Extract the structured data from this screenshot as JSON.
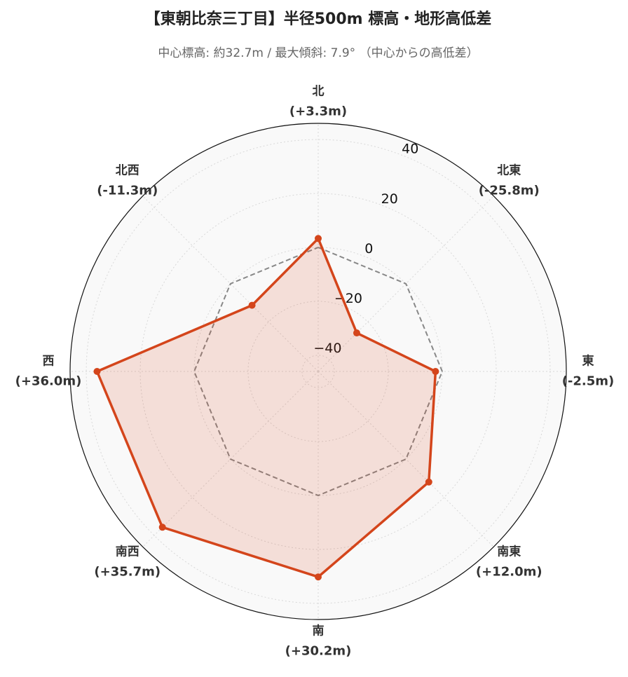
{
  "chart_data": {
    "type": "radar",
    "title": "【東朝比奈三丁目】半径500m 標高・地形高低差",
    "subtitle": "中心標高: 約32.7m / 最大傾斜: 7.9° （中心からの高低差）",
    "categories": [
      "北",
      "北東",
      "東",
      "南東",
      "南",
      "南西",
      "西",
      "北西"
    ],
    "values": [
      3.3,
      -25.8,
      -2.5,
      12.0,
      30.2,
      35.7,
      36.0,
      -11.3
    ],
    "value_labels": [
      "(+3.3m)",
      "(-25.8m)",
      "(-2.5m)",
      "(+12.0m)",
      "(+30.2m)",
      "(+35.7m)",
      "(+36.0m)",
      "(-11.3m)"
    ],
    "color": "#d4451b",
    "reference": 0,
    "reference_color": "#888888",
    "ylim": [
      -46,
      46
    ],
    "yticks": [
      {
        "value": -40,
        "label": "−40"
      },
      {
        "value": -20,
        "label": "−20"
      },
      0,
      20,
      40
    ],
    "grid": true
  }
}
